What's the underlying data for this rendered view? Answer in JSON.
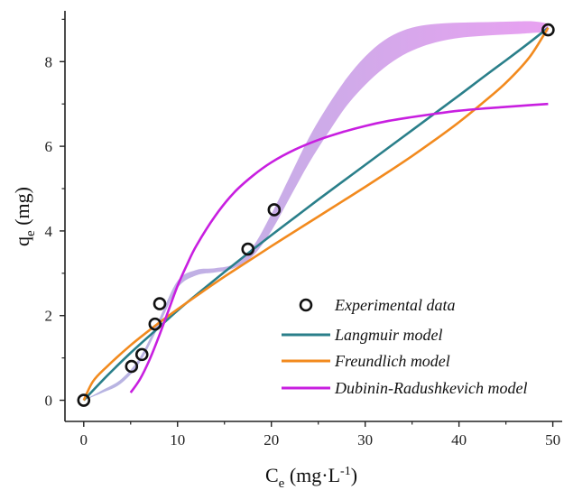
{
  "chart_data": {
    "type": "scatter",
    "xlabel": {
      "main": "C",
      "sub": "e",
      "unit_pre": " (mg·L",
      "sup": "-1",
      "unit_post": ")"
    },
    "ylabel": {
      "main": "q",
      "sub": "e",
      "unit": " (mg)"
    },
    "xlim": [
      -2,
      51
    ],
    "ylim": [
      -0.5,
      9.2
    ],
    "xticks": [
      0,
      10,
      20,
      30,
      40,
      50
    ],
    "yticks": [
      0,
      2,
      4,
      6,
      8
    ],
    "xtick_labels": [
      "0",
      "10",
      "20",
      "30",
      "40",
      "50"
    ],
    "ytick_labels": [
      "0",
      "2",
      "4",
      "6",
      "8"
    ],
    "grid": false,
    "legend_position": "bottom-right",
    "series": [
      {
        "name": "Experimental data",
        "kind": "markers",
        "x": [
          0,
          5.1,
          6.2,
          7.6,
          8.1,
          17.5,
          20.3,
          49.5
        ],
        "y": [
          0,
          0.8,
          1.08,
          1.8,
          2.28,
          3.57,
          4.5,
          8.75
        ]
      },
      {
        "name": "Langmuir model",
        "kind": "line",
        "color": "#2a7f8a",
        "x": [
          0,
          2.5,
          5,
          7.5,
          10,
          12.5,
          15,
          17.5,
          20,
          22.5,
          25,
          27.5,
          30,
          32.5,
          35,
          37.5,
          40,
          42.5,
          45,
          47.5,
          49.5
        ],
        "y": [
          0,
          0.58,
          1.12,
          1.62,
          2.12,
          2.58,
          3.03,
          3.47,
          3.9,
          4.32,
          4.74,
          5.15,
          5.56,
          5.97,
          6.38,
          6.79,
          7.2,
          7.62,
          8.03,
          8.45,
          8.8
        ]
      },
      {
        "name": "Freundlich model",
        "kind": "line",
        "color": "#f28a1e",
        "x": [
          0,
          1,
          2.5,
          5,
          7.5,
          10,
          12.5,
          15,
          17.5,
          20,
          22.5,
          25,
          27.5,
          30,
          32.5,
          35,
          37.5,
          40,
          42.5,
          45,
          47.5,
          49.5
        ],
        "y": [
          0,
          0.45,
          0.8,
          1.3,
          1.74,
          2.15,
          2.54,
          2.92,
          3.28,
          3.64,
          3.99,
          4.34,
          4.69,
          5.04,
          5.4,
          5.77,
          6.16,
          6.57,
          7.02,
          7.5,
          8.1,
          8.8
        ]
      },
      {
        "name": "Dubinin-Radushkevich model",
        "kind": "line",
        "color": "#c81fe0",
        "x": [
          5,
          6,
          7,
          8,
          9,
          10,
          11,
          12,
          14,
          16,
          18,
          20,
          22.5,
          25,
          27.5,
          30,
          32.5,
          35,
          37.5,
          40,
          42.5,
          45,
          47.5,
          49.5
        ],
        "y": [
          0.18,
          0.5,
          0.95,
          1.5,
          2.1,
          2.7,
          3.2,
          3.65,
          4.35,
          4.9,
          5.3,
          5.62,
          5.92,
          6.15,
          6.33,
          6.48,
          6.6,
          6.69,
          6.77,
          6.84,
          6.89,
          6.93,
          6.97,
          7.0
        ]
      },
      {
        "name": "",
        "kind": "band",
        "x": [
          0,
          2,
          4,
          6,
          8,
          10,
          12,
          14,
          16,
          18,
          20,
          22,
          24,
          26,
          28,
          30,
          32,
          34,
          36,
          38,
          40,
          42,
          44,
          46,
          48,
          49.5
        ],
        "y_low": [
          0,
          0.18,
          0.4,
          0.9,
          1.75,
          2.65,
          2.95,
          3.02,
          3.12,
          3.4,
          4.0,
          4.8,
          5.6,
          6.3,
          6.95,
          7.45,
          7.85,
          8.15,
          8.35,
          8.48,
          8.56,
          8.6,
          8.63,
          8.65,
          8.68,
          8.7
        ],
        "y_high": [
          0,
          0.24,
          0.5,
          1.02,
          1.9,
          2.82,
          3.08,
          3.12,
          3.22,
          3.62,
          4.4,
          5.3,
          6.2,
          6.95,
          7.6,
          8.12,
          8.5,
          8.73,
          8.85,
          8.9,
          8.92,
          8.93,
          8.94,
          8.95,
          8.95,
          8.9
        ],
        "color_start": "#a8a8dc",
        "color_end": "#e79cf0"
      }
    ]
  }
}
